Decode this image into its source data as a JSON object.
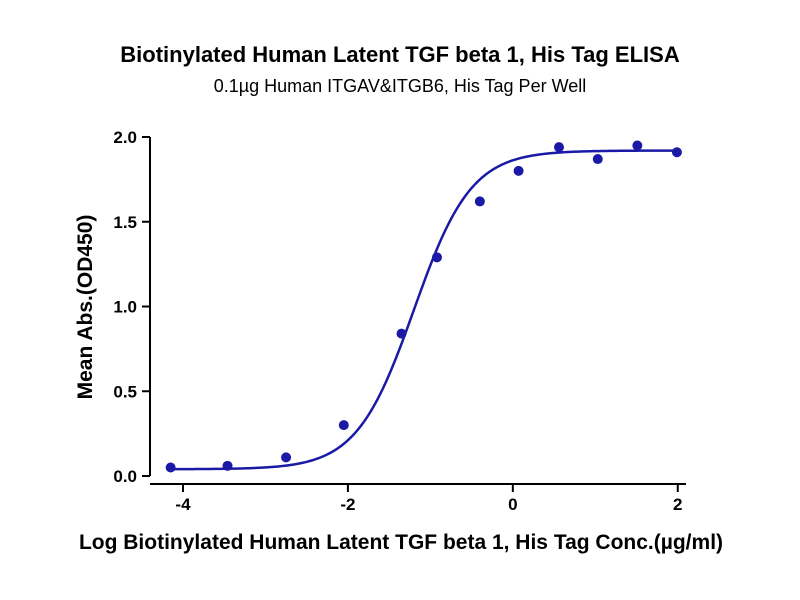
{
  "chart_data": {
    "type": "scatter",
    "title": "Biotinylated Human Latent TGF beta 1, His Tag ELISA",
    "subtitle": "0.1µg Human ITGAV&ITGB6, His Tag Per Well",
    "xlabel": "Log Biotinylated Human Latent TGF beta 1, His Tag Conc.(µg/ml)",
    "ylabel": "Mean Abs.(OD450)",
    "xlim": [
      -4.4,
      2.1
    ],
    "ylim": [
      0,
      2.0
    ],
    "xticks": [
      -4,
      -2,
      0,
      2
    ],
    "xtick_labels": [
      "-4",
      "-2",
      "0",
      "2"
    ],
    "yticks": [
      0,
      0.5,
      1.0,
      1.5,
      2.0
    ],
    "ytick_labels": [
      "0.0",
      "0.5",
      "1.0",
      "1.5",
      "2.0"
    ],
    "grid": false,
    "series": [
      {
        "color": "#1a1aa6",
        "points": [
          {
            "x": -4.15,
            "y": 0.05
          },
          {
            "x": -3.46,
            "y": 0.06
          },
          {
            "x": -2.75,
            "y": 0.11
          },
          {
            "x": -2.05,
            "y": 0.3
          },
          {
            "x": -1.35,
            "y": 0.84
          },
          {
            "x": -0.92,
            "y": 1.29
          },
          {
            "x": -0.4,
            "y": 1.62
          },
          {
            "x": 0.07,
            "y": 1.8
          },
          {
            "x": 0.56,
            "y": 1.94
          },
          {
            "x": 1.03,
            "y": 1.87
          },
          {
            "x": 1.51,
            "y": 1.95
          },
          {
            "x": 1.99,
            "y": 1.91
          }
        ],
        "fit_curve": {
          "model": "4PL",
          "bottom": 0.04,
          "top": 1.92,
          "logEC50": -1.2,
          "hill": 1.25
        }
      }
    ]
  }
}
